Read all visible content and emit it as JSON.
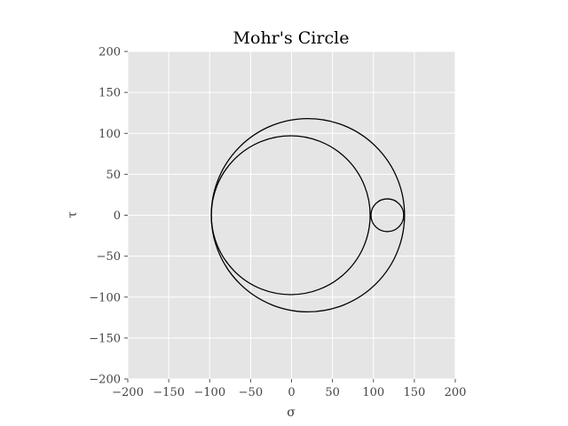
{
  "chart_data": {
    "type": "scatter",
    "title": "Mohr's Circle",
    "xlabel": "σ",
    "ylabel": "τ",
    "xlim": [
      -200,
      200
    ],
    "ylim": [
      -200,
      200
    ],
    "xticks": [
      -200,
      -150,
      -100,
      -50,
      0,
      50,
      100,
      150,
      200
    ],
    "yticks": [
      -200,
      -150,
      -100,
      -50,
      0,
      50,
      100,
      150,
      200
    ],
    "xtick_labels": [
      "−200",
      "−150",
      "−100",
      "−50",
      "0",
      "50",
      "100",
      "150",
      "200"
    ],
    "ytick_labels": [
      "−200",
      "−150",
      "−100",
      "−50",
      "0",
      "50",
      "100",
      "150",
      "200"
    ],
    "grid": true,
    "circles": [
      {
        "center_sigma": 20,
        "radius": 118
      },
      {
        "center_sigma": -1,
        "radius": 97
      },
      {
        "center_sigma": 117,
        "radius": 20
      }
    ],
    "colors": {
      "background": "#e5e5e5",
      "grid": "#ffffff",
      "circle": "#000000"
    }
  }
}
